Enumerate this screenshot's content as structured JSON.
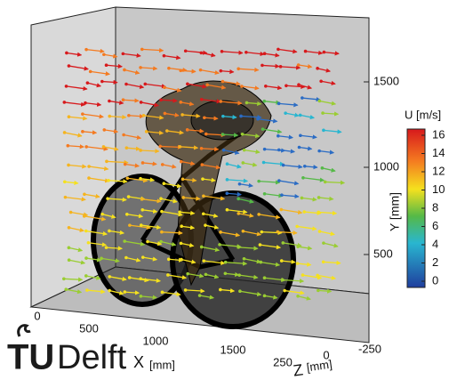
{
  "logo": {
    "bold": "TU",
    "light": "Delft"
  },
  "axes": {
    "x": {
      "label": "X",
      "unit": "[mm]",
      "ticks": [
        "0",
        "500",
        "1000",
        "1500"
      ]
    },
    "y": {
      "label": "Y [mm]",
      "ticks": [
        "1500",
        "1000",
        "500"
      ]
    },
    "z": {
      "label": "Z",
      "unit": "[mm]",
      "ticks": [
        "250",
        "0",
        "-250"
      ]
    }
  },
  "colorbar": {
    "title": "U [m/s]",
    "ticks": [
      "16",
      "14",
      "12",
      "10",
      "8",
      "6",
      "4",
      "2",
      "0"
    ]
  }
}
